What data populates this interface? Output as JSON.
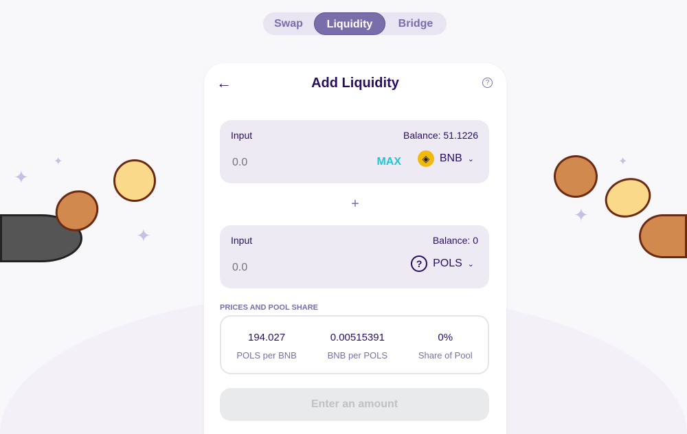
{
  "tabs": [
    {
      "label": "Swap"
    },
    {
      "label": "Liquidity",
      "active": true
    },
    {
      "label": "Bridge"
    }
  ],
  "card": {
    "title": "Add Liquidity",
    "back_icon": "arrow-left-icon",
    "help_icon": "question-circle-icon"
  },
  "input_a": {
    "label": "Input",
    "balance": "Balance: 51.1226",
    "value": "0.0",
    "max_label": "MAX",
    "token": "BNB"
  },
  "input_b": {
    "label": "Input",
    "balance": "Balance: 0",
    "value": "0.0",
    "token": "POLS"
  },
  "plus": "+",
  "prices": {
    "section_title": "PRICES AND POOL SHARE",
    "items": [
      {
        "value": "194.027",
        "label": "POLS per BNB"
      },
      {
        "value": "0.00515391",
        "label": "BNB per POLS"
      },
      {
        "value": "0%",
        "label": "Share of Pool"
      }
    ]
  },
  "submit_label": "Enter an amount",
  "colors": {
    "primary": "#7a6eaa",
    "text": "#280d5f",
    "accent": "#1fc7d4"
  }
}
